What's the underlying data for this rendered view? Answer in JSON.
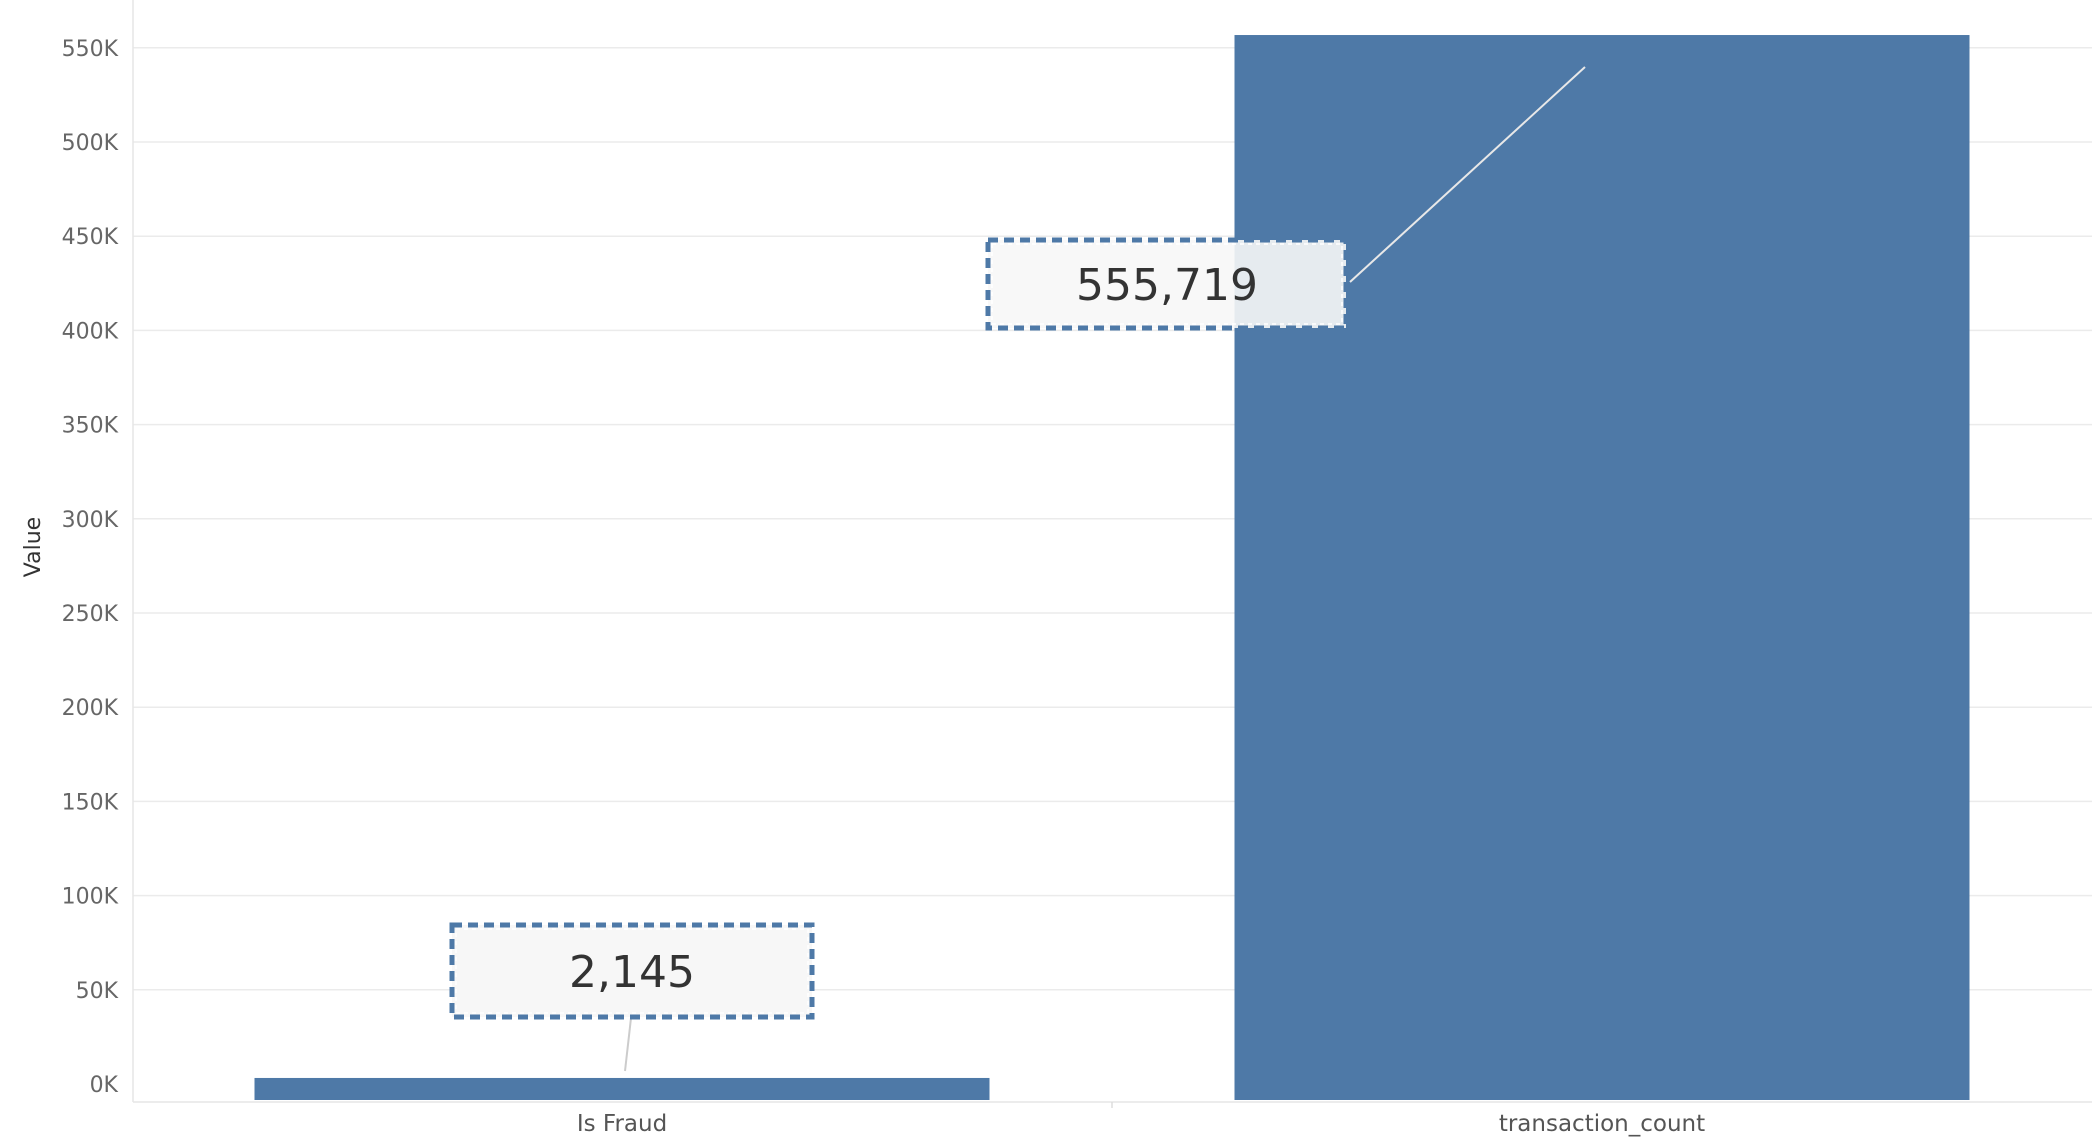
{
  "chart_data": {
    "type": "bar",
    "categories": [
      "Is Fraud",
      "transaction_count"
    ],
    "values": [
      2145,
      555719
    ],
    "value_labels": [
      "2,145",
      "555,719"
    ],
    "title": "",
    "xlabel": "",
    "ylabel": "Value",
    "ylim": [
      0,
      560000
    ],
    "yticks": [
      0,
      50000,
      100000,
      150000,
      200000,
      250000,
      300000,
      350000,
      400000,
      450000,
      500000,
      550000
    ],
    "ytick_labels": [
      "0K",
      "50K",
      "100K",
      "150K",
      "200K",
      "250K",
      "300K",
      "350K",
      "400K",
      "450K",
      "500K",
      "550K"
    ],
    "grid": true,
    "legend": "none"
  },
  "colors": {
    "bar": "#4e79a7",
    "grid": "#ebebeb",
    "callout_fill": "#f7f7f7",
    "callout_border": "#4e79a7",
    "leader_line": "#cccccc"
  }
}
